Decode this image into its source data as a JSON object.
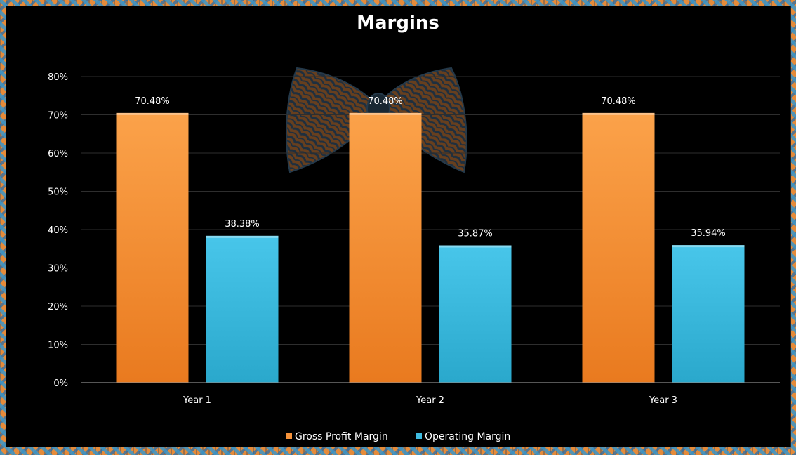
{
  "colors": {
    "background": "#000000",
    "gross_profit": "#f5923a",
    "operating": "#3ebbe0",
    "gridline": "#2e2e2e",
    "text": "#ffffff"
  },
  "chart_data": {
    "type": "bar",
    "title": "Margins",
    "categories": [
      "Year 1",
      "Year 2",
      "Year 3"
    ],
    "series": [
      {
        "name": "Gross Profit Margin",
        "values": [
          70.48,
          70.48,
          70.48
        ],
        "labels": [
          "70.48%",
          "70.48%",
          "70.48%"
        ],
        "color": "#f5923a"
      },
      {
        "name": "Operating Margin",
        "values": [
          38.38,
          35.87,
          35.94
        ],
        "labels": [
          "38.38%",
          "35.87%",
          "35.94%"
        ],
        "color": "#3ebbe0"
      }
    ],
    "ylim": [
      0,
      80
    ],
    "yticks": [
      "0%",
      "10%",
      "20%",
      "30%",
      "40%",
      "50%",
      "60%",
      "70%",
      "80%"
    ],
    "ytick_values": [
      0,
      10,
      20,
      30,
      40,
      50,
      60,
      70,
      80
    ],
    "grid": true,
    "legend": "bottom",
    "decoration": "bow-tie-watermark"
  }
}
